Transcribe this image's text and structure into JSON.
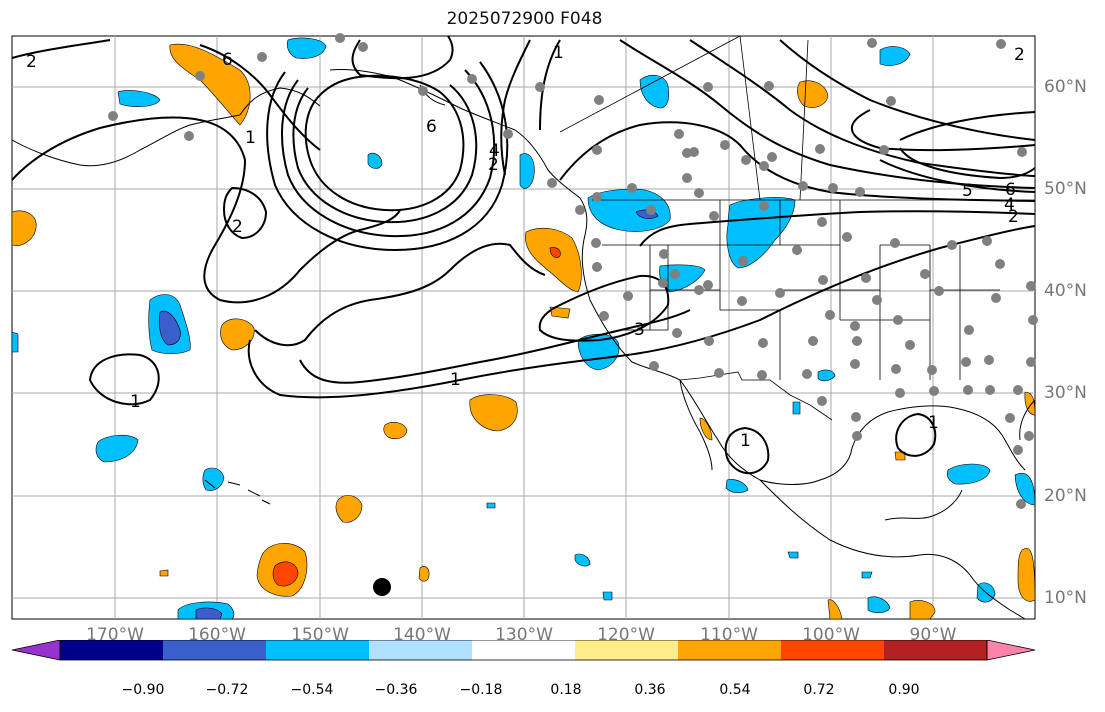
{
  "title": "2025072900 F048",
  "lon_labels": [
    "170°W",
    "160°W",
    "150°W",
    "140°W",
    "130°W",
    "120°W",
    "110°W",
    "100°W",
    "90°W"
  ],
  "lat_labels": [
    "60°N",
    "50°N",
    "40°N",
    "30°N",
    "20°N",
    "10°N"
  ],
  "colorbar": {
    "ticks": [
      "−0.90",
      "−0.72",
      "−0.54",
      "−0.36",
      "−0.18",
      "0.18",
      "0.36",
      "0.54",
      "0.72",
      "0.90"
    ],
    "colors": [
      "#9932CC",
      "#00008B",
      "#3A5FCD",
      "#00BFFF",
      "#B0E2FF",
      "#FFFFFF",
      "#FFEC8B",
      "#FFA500",
      "#FF4500",
      "#B22222",
      "#FF82AB"
    ]
  },
  "contour_labels": [
    "2",
    "6",
    "6",
    "4",
    "2",
    "1",
    "1",
    "1",
    "2",
    "5",
    "6",
    "4",
    "2",
    "3",
    "1",
    "1",
    "1",
    "2"
  ],
  "colors": {
    "contour": "#000000",
    "station": "#808080",
    "grid": "#aaaaaa",
    "coast": "#000000"
  }
}
